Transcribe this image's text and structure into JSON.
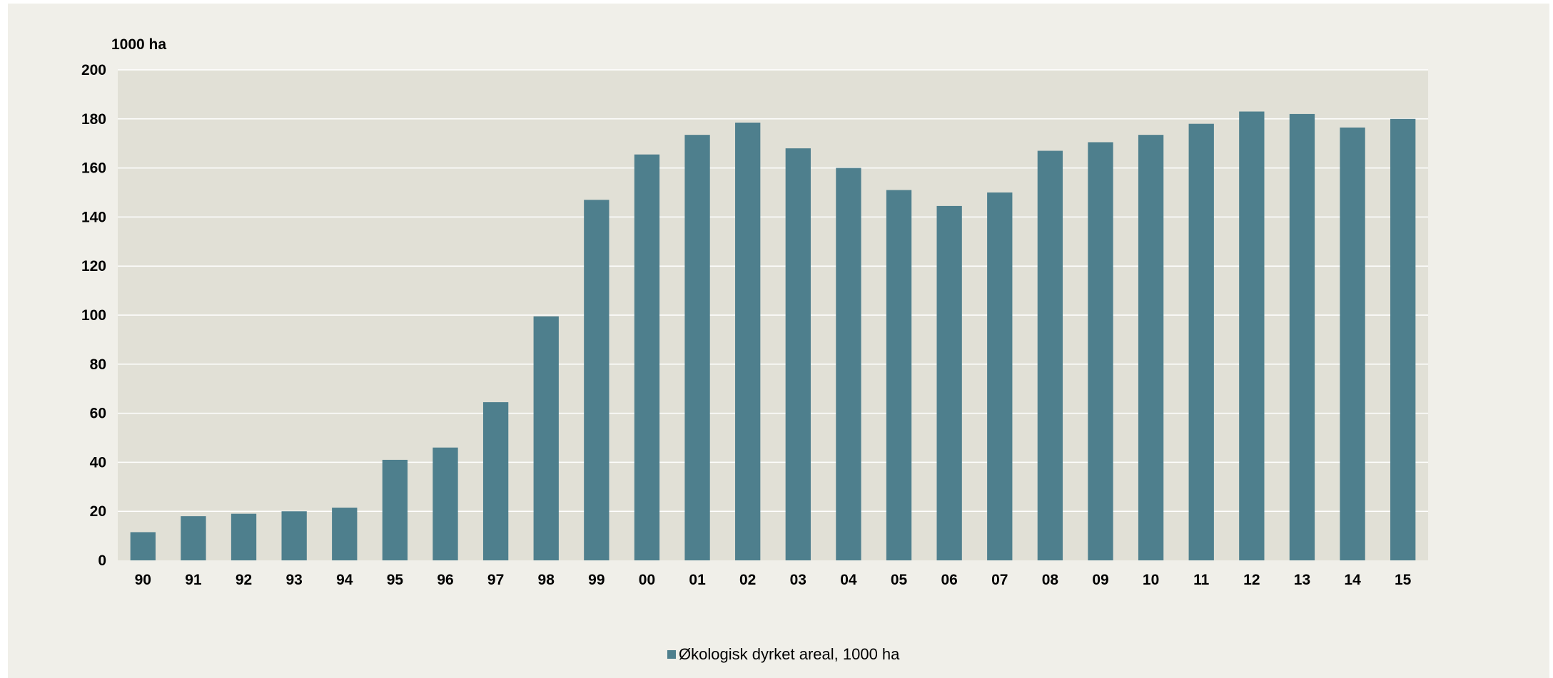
{
  "chart_data": {
    "type": "bar",
    "ylabel": "1000 ha",
    "ylim": [
      0,
      200
    ],
    "yticks": [
      0,
      20,
      40,
      60,
      80,
      100,
      120,
      140,
      160,
      180,
      200
    ],
    "categories": [
      "90",
      "91",
      "92",
      "93",
      "94",
      "95",
      "96",
      "97",
      "98",
      "99",
      "00",
      "01",
      "02",
      "03",
      "04",
      "05",
      "06",
      "07",
      "08",
      "09",
      "10",
      "11",
      "12",
      "13",
      "14",
      "15"
    ],
    "series": [
      {
        "name": "Økologisk dyrket areal, 1000 ha",
        "color": "#4e7f8d",
        "values": [
          11.5,
          18,
          19,
          20,
          21.5,
          41,
          46,
          64.5,
          99.5,
          147,
          165.5,
          173.5,
          178.5,
          168,
          160,
          151,
          144.5,
          150,
          167,
          170.5,
          173.5,
          178,
          183,
          182,
          176.5,
          180
        ]
      }
    ],
    "grid": true,
    "legend_position": "bottom-center",
    "plot_background": "#e1e0d6",
    "gridline_color": "#ffffff"
  }
}
